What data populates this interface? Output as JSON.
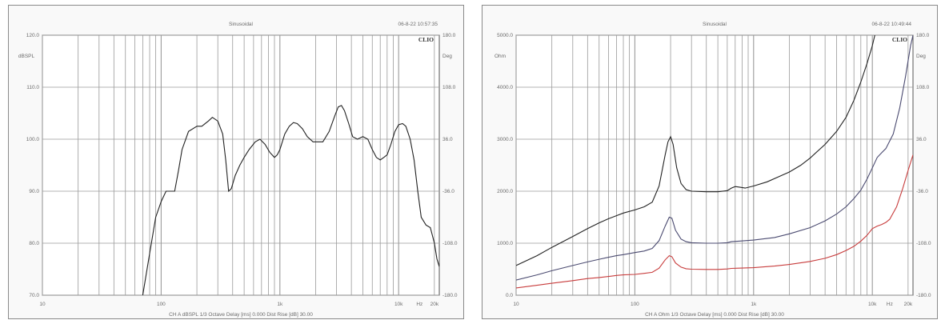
{
  "colors": {
    "background": "#f9f9f9",
    "grid": "#9a9a9a",
    "black_trace": "#222222",
    "blue_trace": "#4a4a70",
    "red_trace": "#c83c3c"
  },
  "chart_data": [
    {
      "type": "line",
      "title": "Sinusoidal",
      "timestamp": "06-8-22 10:57:35",
      "brand": "CLIO",
      "y_axis_unit": "dBSPL",
      "y2_axis_unit": "Deg",
      "x_axis_scale": "log",
      "xlim": [
        10,
        22000
      ],
      "ylim": [
        70,
        120
      ],
      "y2lim": [
        -180,
        180
      ],
      "grid": true,
      "x_tick_labels": [
        {
          "value": 10,
          "label": "10"
        },
        {
          "value": 100,
          "label": "100"
        },
        {
          "value": 1000,
          "label": "1k"
        },
        {
          "value": 10000,
          "label": "10k"
        },
        {
          "value": 15000,
          "label": "Hz"
        },
        {
          "value": 20000,
          "label": "20k"
        }
      ],
      "y_tick_labels": [
        "120.0",
        "110.0",
        "100.0",
        "90.0",
        "80.0",
        "70.0"
      ],
      "y_ticks": [
        120,
        110,
        100,
        90,
        80,
        70
      ],
      "y2_tick_labels": [
        "180.0",
        "108.0",
        "36.0",
        "-36.0",
        "-108.0",
        "-180.0"
      ],
      "y2_ticks": [
        180,
        108,
        36,
        -36,
        -108,
        -180
      ],
      "footer": "CH A   dBSPL   1/3 Octave   Delay [ms] 0.000   Dist Rise [dB] 30.00",
      "series": [
        {
          "color": "#222222",
          "points": [
            [
              70,
              70
            ],
            [
              80,
              78
            ],
            [
              90,
              85
            ],
            [
              100,
              88
            ],
            [
              110,
              90
            ],
            [
              120,
              90
            ],
            [
              130,
              90
            ],
            [
              140,
              94
            ],
            [
              150,
              98
            ],
            [
              170,
              101.5
            ],
            [
              200,
              102.5
            ],
            [
              220,
              102.5
            ],
            [
              250,
              103.5
            ],
            [
              270,
              104.2
            ],
            [
              300,
              103.5
            ],
            [
              330,
              101
            ],
            [
              350,
              96
            ],
            [
              370,
              90
            ],
            [
              390,
              90.5
            ],
            [
              420,
              93
            ],
            [
              460,
              95
            ],
            [
              500,
              96.5
            ],
            [
              550,
              98
            ],
            [
              620,
              99.5
            ],
            [
              680,
              100
            ],
            [
              750,
              99
            ],
            [
              820,
              97.5
            ],
            [
              900,
              96.5
            ],
            [
              950,
              97
            ],
            [
              1000,
              98
            ],
            [
              1100,
              101
            ],
            [
              1200,
              102.5
            ],
            [
              1300,
              103.2
            ],
            [
              1400,
              103
            ],
            [
              1550,
              102
            ],
            [
              1700,
              100.5
            ],
            [
              1900,
              99.5
            ],
            [
              2100,
              99.5
            ],
            [
              2300,
              99.5
            ],
            [
              2600,
              101.5
            ],
            [
              2900,
              104.5
            ],
            [
              3100,
              106.2
            ],
            [
              3300,
              106.5
            ],
            [
              3500,
              105.5
            ],
            [
              3800,
              103
            ],
            [
              4100,
              100.5
            ],
            [
              4500,
              100
            ],
            [
              5000,
              100.5
            ],
            [
              5500,
              100
            ],
            [
              6000,
              98
            ],
            [
              6500,
              96.5
            ],
            [
              7000,
              96
            ],
            [
              7500,
              96.5
            ],
            [
              8000,
              97
            ],
            [
              8600,
              99
            ],
            [
              9300,
              101.5
            ],
            [
              10000,
              102.8
            ],
            [
              10800,
              103
            ],
            [
              11500,
              102.5
            ],
            [
              12500,
              100
            ],
            [
              13500,
              96
            ],
            [
              14500,
              90
            ],
            [
              15500,
              85
            ],
            [
              17000,
              83.5
            ],
            [
              18500,
              83
            ],
            [
              20000,
              80
            ],
            [
              21000,
              77
            ],
            [
              22000,
              75.5
            ]
          ]
        }
      ]
    },
    {
      "type": "line",
      "title": "Sinusoidal",
      "timestamp": "06-8-22 10:49:44",
      "brand": "CLIO",
      "y_axis_unit": "Ohm",
      "y2_axis_unit": "Deg",
      "x_axis_scale": "log",
      "xlim": [
        10,
        22000
      ],
      "ylim": [
        0,
        5000
      ],
      "y2lim": [
        -180,
        180
      ],
      "grid": true,
      "x_tick_labels": [
        {
          "value": 10,
          "label": "10"
        },
        {
          "value": 100,
          "label": "100"
        },
        {
          "value": 1000,
          "label": "1k"
        },
        {
          "value": 10000,
          "label": "10k"
        },
        {
          "value": 14000,
          "label": "Hz"
        },
        {
          "value": 20000,
          "label": "20k"
        }
      ],
      "y_tick_labels": [
        "5000.0",
        "4000.0",
        "3000.0",
        "2000.0",
        "1000.0",
        "0.0"
      ],
      "y_ticks": [
        5000,
        4000,
        3000,
        2000,
        1000,
        0
      ],
      "y2_tick_labels": [
        "180.0",
        "108.0",
        "36.0",
        "-36.0",
        "-108.0",
        "-180.0"
      ],
      "y2_ticks": [
        180,
        108,
        36,
        -36,
        -108,
        -180
      ],
      "footer": "CH A   Ohm   1/3 Octave   Delay [ms] 0.000   Dist Rise [dB] 30.00",
      "series": [
        {
          "color": "#222222",
          "points": [
            [
              10,
              570
            ],
            [
              15,
              760
            ],
            [
              20,
              920
            ],
            [
              30,
              1130
            ],
            [
              40,
              1280
            ],
            [
              50,
              1390
            ],
            [
              60,
              1470
            ],
            [
              70,
              1530
            ],
            [
              80,
              1580
            ],
            [
              100,
              1640
            ],
            [
              120,
              1700
            ],
            [
              140,
              1790
            ],
            [
              160,
              2100
            ],
            [
              180,
              2700
            ],
            [
              190,
              2950
            ],
            [
              200,
              3050
            ],
            [
              210,
              2900
            ],
            [
              225,
              2450
            ],
            [
              245,
              2150
            ],
            [
              270,
              2030
            ],
            [
              300,
              2000
            ],
            [
              400,
              1990
            ],
            [
              500,
              1990
            ],
            [
              600,
              2010
            ],
            [
              650,
              2060
            ],
            [
              700,
              2090
            ],
            [
              750,
              2080
            ],
            [
              850,
              2060
            ],
            [
              1000,
              2100
            ],
            [
              1300,
              2180
            ],
            [
              1600,
              2270
            ],
            [
              2000,
              2370
            ],
            [
              2500,
              2500
            ],
            [
              3000,
              2640
            ],
            [
              4000,
              2900
            ],
            [
              5000,
              3150
            ],
            [
              6000,
              3420
            ],
            [
              7000,
              3750
            ],
            [
              8000,
              4100
            ],
            [
              9000,
              4450
            ],
            [
              10000,
              4800
            ],
            [
              10500,
              5000
            ]
          ]
        },
        {
          "color": "#4a4a70",
          "points": [
            [
              10,
              290
            ],
            [
              15,
              390
            ],
            [
              20,
              470
            ],
            [
              30,
              570
            ],
            [
              40,
              640
            ],
            [
              50,
              690
            ],
            [
              60,
              730
            ],
            [
              70,
              760
            ],
            [
              80,
              780
            ],
            [
              100,
              820
            ],
            [
              120,
              850
            ],
            [
              140,
              900
            ],
            [
              160,
              1050
            ],
            [
              180,
              1330
            ],
            [
              195,
              1500
            ],
            [
              205,
              1480
            ],
            [
              220,
              1250
            ],
            [
              245,
              1080
            ],
            [
              270,
              1030
            ],
            [
              300,
              1010
            ],
            [
              400,
              1000
            ],
            [
              500,
              1000
            ],
            [
              600,
              1010
            ],
            [
              650,
              1030
            ],
            [
              750,
              1040
            ],
            [
              1000,
              1060
            ],
            [
              1500,
              1110
            ],
            [
              2000,
              1180
            ],
            [
              3000,
              1300
            ],
            [
              4000,
              1430
            ],
            [
              5000,
              1560
            ],
            [
              6000,
              1700
            ],
            [
              7000,
              1860
            ],
            [
              8000,
              2020
            ],
            [
              9000,
              2230
            ],
            [
              10000,
              2450
            ],
            [
              11000,
              2650
            ],
            [
              12000,
              2740
            ],
            [
              13000,
              2820
            ],
            [
              15000,
              3100
            ],
            [
              17000,
              3600
            ],
            [
              19000,
              4200
            ],
            [
              21000,
              4800
            ],
            [
              22000,
              5000
            ]
          ]
        },
        {
          "color": "#c83c3c",
          "points": [
            [
              10,
              140
            ],
            [
              15,
              190
            ],
            [
              20,
              230
            ],
            [
              30,
              280
            ],
            [
              40,
              320
            ],
            [
              50,
              340
            ],
            [
              60,
              360
            ],
            [
              70,
              380
            ],
            [
              80,
              390
            ],
            [
              100,
              400
            ],
            [
              120,
              420
            ],
            [
              140,
              440
            ],
            [
              160,
              520
            ],
            [
              180,
              680
            ],
            [
              195,
              760
            ],
            [
              205,
              740
            ],
            [
              220,
              620
            ],
            [
              245,
              540
            ],
            [
              270,
              510
            ],
            [
              300,
              500
            ],
            [
              400,
              495
            ],
            [
              500,
              495
            ],
            [
              600,
              505
            ],
            [
              650,
              515
            ],
            [
              750,
              520
            ],
            [
              1000,
              530
            ],
            [
              1500,
              560
            ],
            [
              2000,
              590
            ],
            [
              3000,
              650
            ],
            [
              4000,
              710
            ],
            [
              5000,
              780
            ],
            [
              6000,
              860
            ],
            [
              7000,
              940
            ],
            [
              8000,
              1040
            ],
            [
              9000,
              1150
            ],
            [
              10000,
              1280
            ],
            [
              11000,
              1330
            ],
            [
              12000,
              1360
            ],
            [
              13000,
              1400
            ],
            [
              14000,
              1460
            ],
            [
              16000,
              1700
            ],
            [
              18000,
              2050
            ],
            [
              20000,
              2400
            ],
            [
              22000,
              2700
            ]
          ]
        }
      ]
    }
  ]
}
